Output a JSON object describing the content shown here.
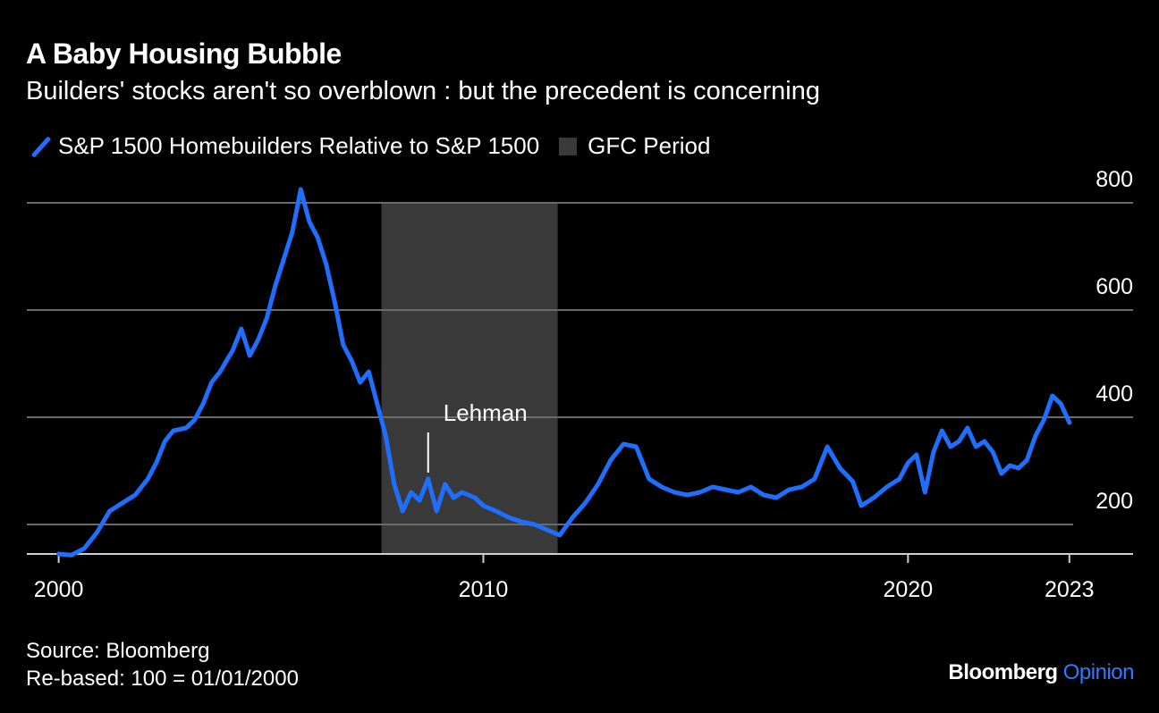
{
  "header": {
    "title": "A Baby Housing Bubble",
    "subtitle": "Builders' stocks aren't so overblown : but the precedent is concerning"
  },
  "legend": {
    "series_label": "S&P 1500 Homebuilders Relative to S&P 1500",
    "period_label": "GFC Period"
  },
  "footer": {
    "source": "Source: Bloomberg",
    "note": "Re-based: 100 = 01/01/2000",
    "brand_main": "Bloomberg",
    "brand_accent": "Opinion"
  },
  "colors": {
    "line": "#1f6fff",
    "shade": "#3a3a3a",
    "grid": "#6b6b6b",
    "background": "#000000"
  },
  "chart_data": {
    "type": "line",
    "title": "A Baby Housing Bubble",
    "subtitle": "Builders' stocks aren't so overblown : but the precedent is concerning",
    "xlabel": "",
    "ylabel": "",
    "x_ticks": [
      {
        "value": 2000.0,
        "label": "2000"
      },
      {
        "value": 2010.0,
        "label": "2010"
      },
      {
        "value": 2020.0,
        "label": "2020"
      },
      {
        "value": 2023.8,
        "label": "2023"
      }
    ],
    "y_ticks": [
      200,
      400,
      600,
      800
    ],
    "xlim": [
      1999.25,
      2025.3
    ],
    "ylim": [
      100,
      800
    ],
    "grid": true,
    "legend_position": "top-left",
    "shaded_period": {
      "label": "GFC Period",
      "x_start": 2007.6,
      "x_end": 2011.75
    },
    "annotations": [
      {
        "text": "Lehman",
        "x": 2008.7,
        "y": 235
      }
    ],
    "series": [
      {
        "name": "S&P 1500 Homebuilders Relative to S&P 1500",
        "x": [
          2000.0,
          2000.3,
          2000.6,
          2000.9,
          2001.2,
          2001.5,
          2001.8,
          2002.1,
          2002.3,
          2002.5,
          2002.7,
          2003.0,
          2003.2,
          2003.4,
          2003.6,
          2003.8,
          2004.1,
          2004.3,
          2004.5,
          2004.7,
          2004.9,
          2005.1,
          2005.3,
          2005.5,
          2005.7,
          2005.9,
          2006.1,
          2006.3,
          2006.5,
          2006.7,
          2006.9,
          2007.1,
          2007.3,
          2007.5,
          2007.7,
          2007.9,
          2008.1,
          2008.3,
          2008.5,
          2008.7,
          2008.9,
          2009.1,
          2009.3,
          2009.5,
          2009.8,
          2010.0,
          2010.3,
          2010.6,
          2010.9,
          2011.2,
          2011.5,
          2011.8,
          2012.1,
          2012.4,
          2012.7,
          2013.0,
          2013.3,
          2013.6,
          2013.9,
          2014.2,
          2014.5,
          2014.8,
          2015.1,
          2015.4,
          2015.7,
          2016.0,
          2016.3,
          2016.6,
          2016.9,
          2017.2,
          2017.5,
          2017.8,
          2018.1,
          2018.4,
          2018.7,
          2018.9,
          2019.2,
          2019.5,
          2019.8,
          2020.0,
          2020.2,
          2020.4,
          2020.6,
          2020.8,
          2021.0,
          2021.2,
          2021.4,
          2021.6,
          2021.8,
          2022.0,
          2022.2,
          2022.4,
          2022.6,
          2022.8,
          2023.0,
          2023.2,
          2023.4,
          2023.6,
          2023.8
        ],
        "values": [
          100,
          98,
          110,
          140,
          180,
          195,
          210,
          240,
          270,
          310,
          330,
          335,
          350,
          380,
          420,
          440,
          480,
          520,
          470,
          500,
          540,
          600,
          650,
          700,
          780,
          720,
          690,
          640,
          570,
          490,
          460,
          420,
          440,
          380,
          320,
          230,
          180,
          215,
          200,
          240,
          180,
          230,
          205,
          215,
          205,
          190,
          180,
          168,
          160,
          155,
          145,
          135,
          168,
          195,
          230,
          275,
          305,
          300,
          240,
          225,
          215,
          210,
          215,
          225,
          220,
          215,
          225,
          210,
          205,
          220,
          225,
          240,
          300,
          260,
          235,
          190,
          205,
          225,
          240,
          270,
          285,
          215,
          290,
          330,
          300,
          310,
          335,
          300,
          310,
          290,
          250,
          265,
          260,
          275,
          320,
          350,
          395,
          380,
          345
        ]
      }
    ]
  }
}
